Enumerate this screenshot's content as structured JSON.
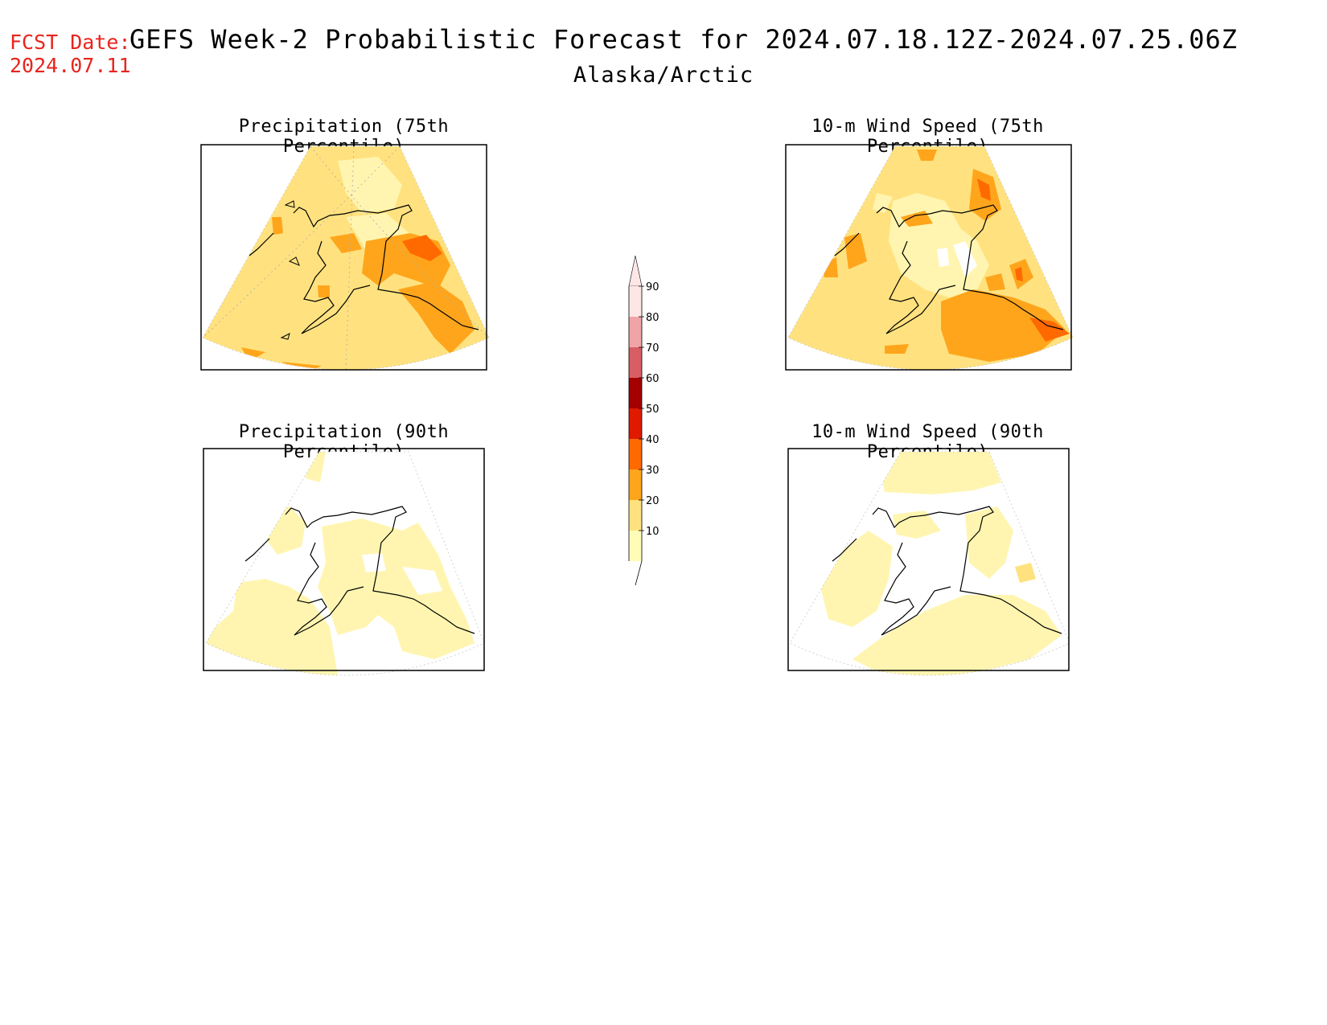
{
  "header": {
    "fcst_label": "FCST Date:",
    "fcst_date": "2024.07.11",
    "title": "GEFS Week-2 Probabilistic Forecast for 2024.07.18.12Z-2024.07.25.06Z",
    "region": "Alaska/Arctic"
  },
  "panels": [
    {
      "title": "Precipitation (75th Percentile)"
    },
    {
      "title": "10-m Wind Speed (75th Percentile)"
    },
    {
      "title": "Precipitation (90th Percentile)"
    },
    {
      "title": "10-m Wind Speed (90th Percentile)"
    }
  ],
  "colorbar": {
    "levels": [
      "10",
      "20",
      "30",
      "40",
      "50",
      "60",
      "70",
      "80",
      "90"
    ],
    "colors": [
      "#fffcb8",
      "#ffe27f",
      "#ffa51c",
      "#ff6a00",
      "#e01a00",
      "#a50000",
      "#d85e63",
      "#f1a4a8",
      "#fde6e6"
    ]
  },
  "palette": {
    "pale": "#fff5b0",
    "light": "#ffe27f",
    "orange": "#ffa51c",
    "dark_orange": "#ff6a00",
    "red": "#e01a00"
  }
}
